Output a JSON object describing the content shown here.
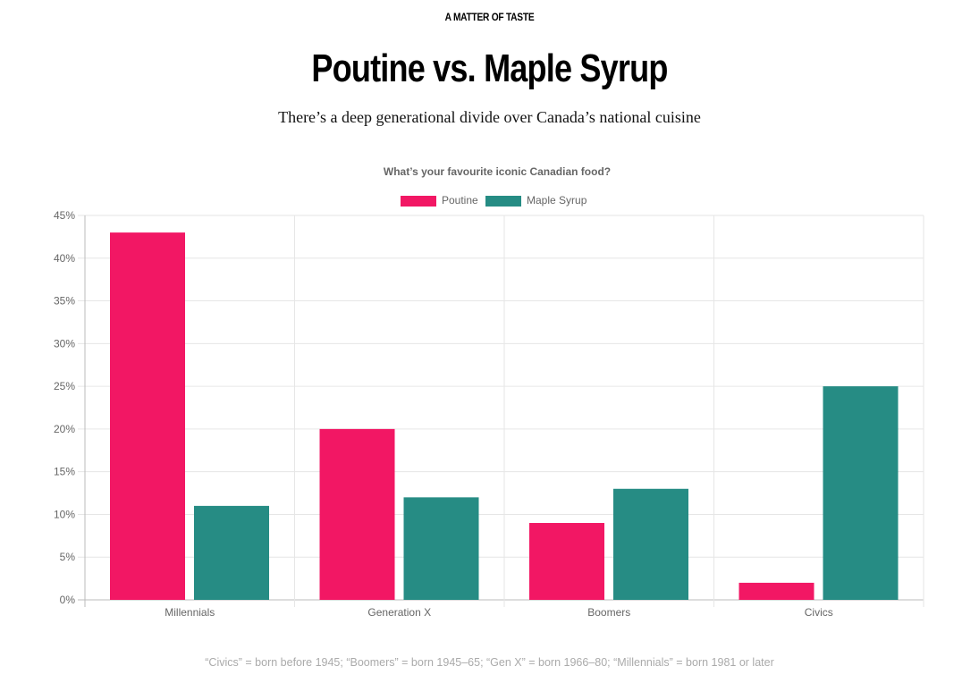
{
  "header": {
    "kicker": "A MATTER OF TASTE",
    "title": "Poutine vs. Maple Syrup",
    "subtitle": "There’s a deep generational divide over Canada’s national cuisine"
  },
  "chart_data": {
    "type": "bar",
    "title": "What’s your favourite iconic Canadian food?",
    "categories": [
      "Millennials",
      "Generation X",
      "Boomers",
      "Civics"
    ],
    "series": [
      {
        "name": "Poutine",
        "color": "#f21764",
        "values": [
          43,
          20,
          9,
          2
        ]
      },
      {
        "name": "Maple Syrup",
        "color": "#268c84",
        "values": [
          11,
          12,
          13,
          25
        ]
      }
    ],
    "yticks": [
      "0%",
      "5%",
      "10%",
      "15%",
      "20%",
      "25%",
      "30%",
      "35%",
      "40%",
      "45%"
    ],
    "ylim": [
      0,
      45
    ],
    "xlabel": "",
    "ylabel": "",
    "grid": true,
    "legend_position": "top"
  },
  "footnote": "“Civics” = born before 1945; “Boomers” = born 1945–65; “Gen X” = born 1966–80; “Millennials” = born 1981 or later"
}
